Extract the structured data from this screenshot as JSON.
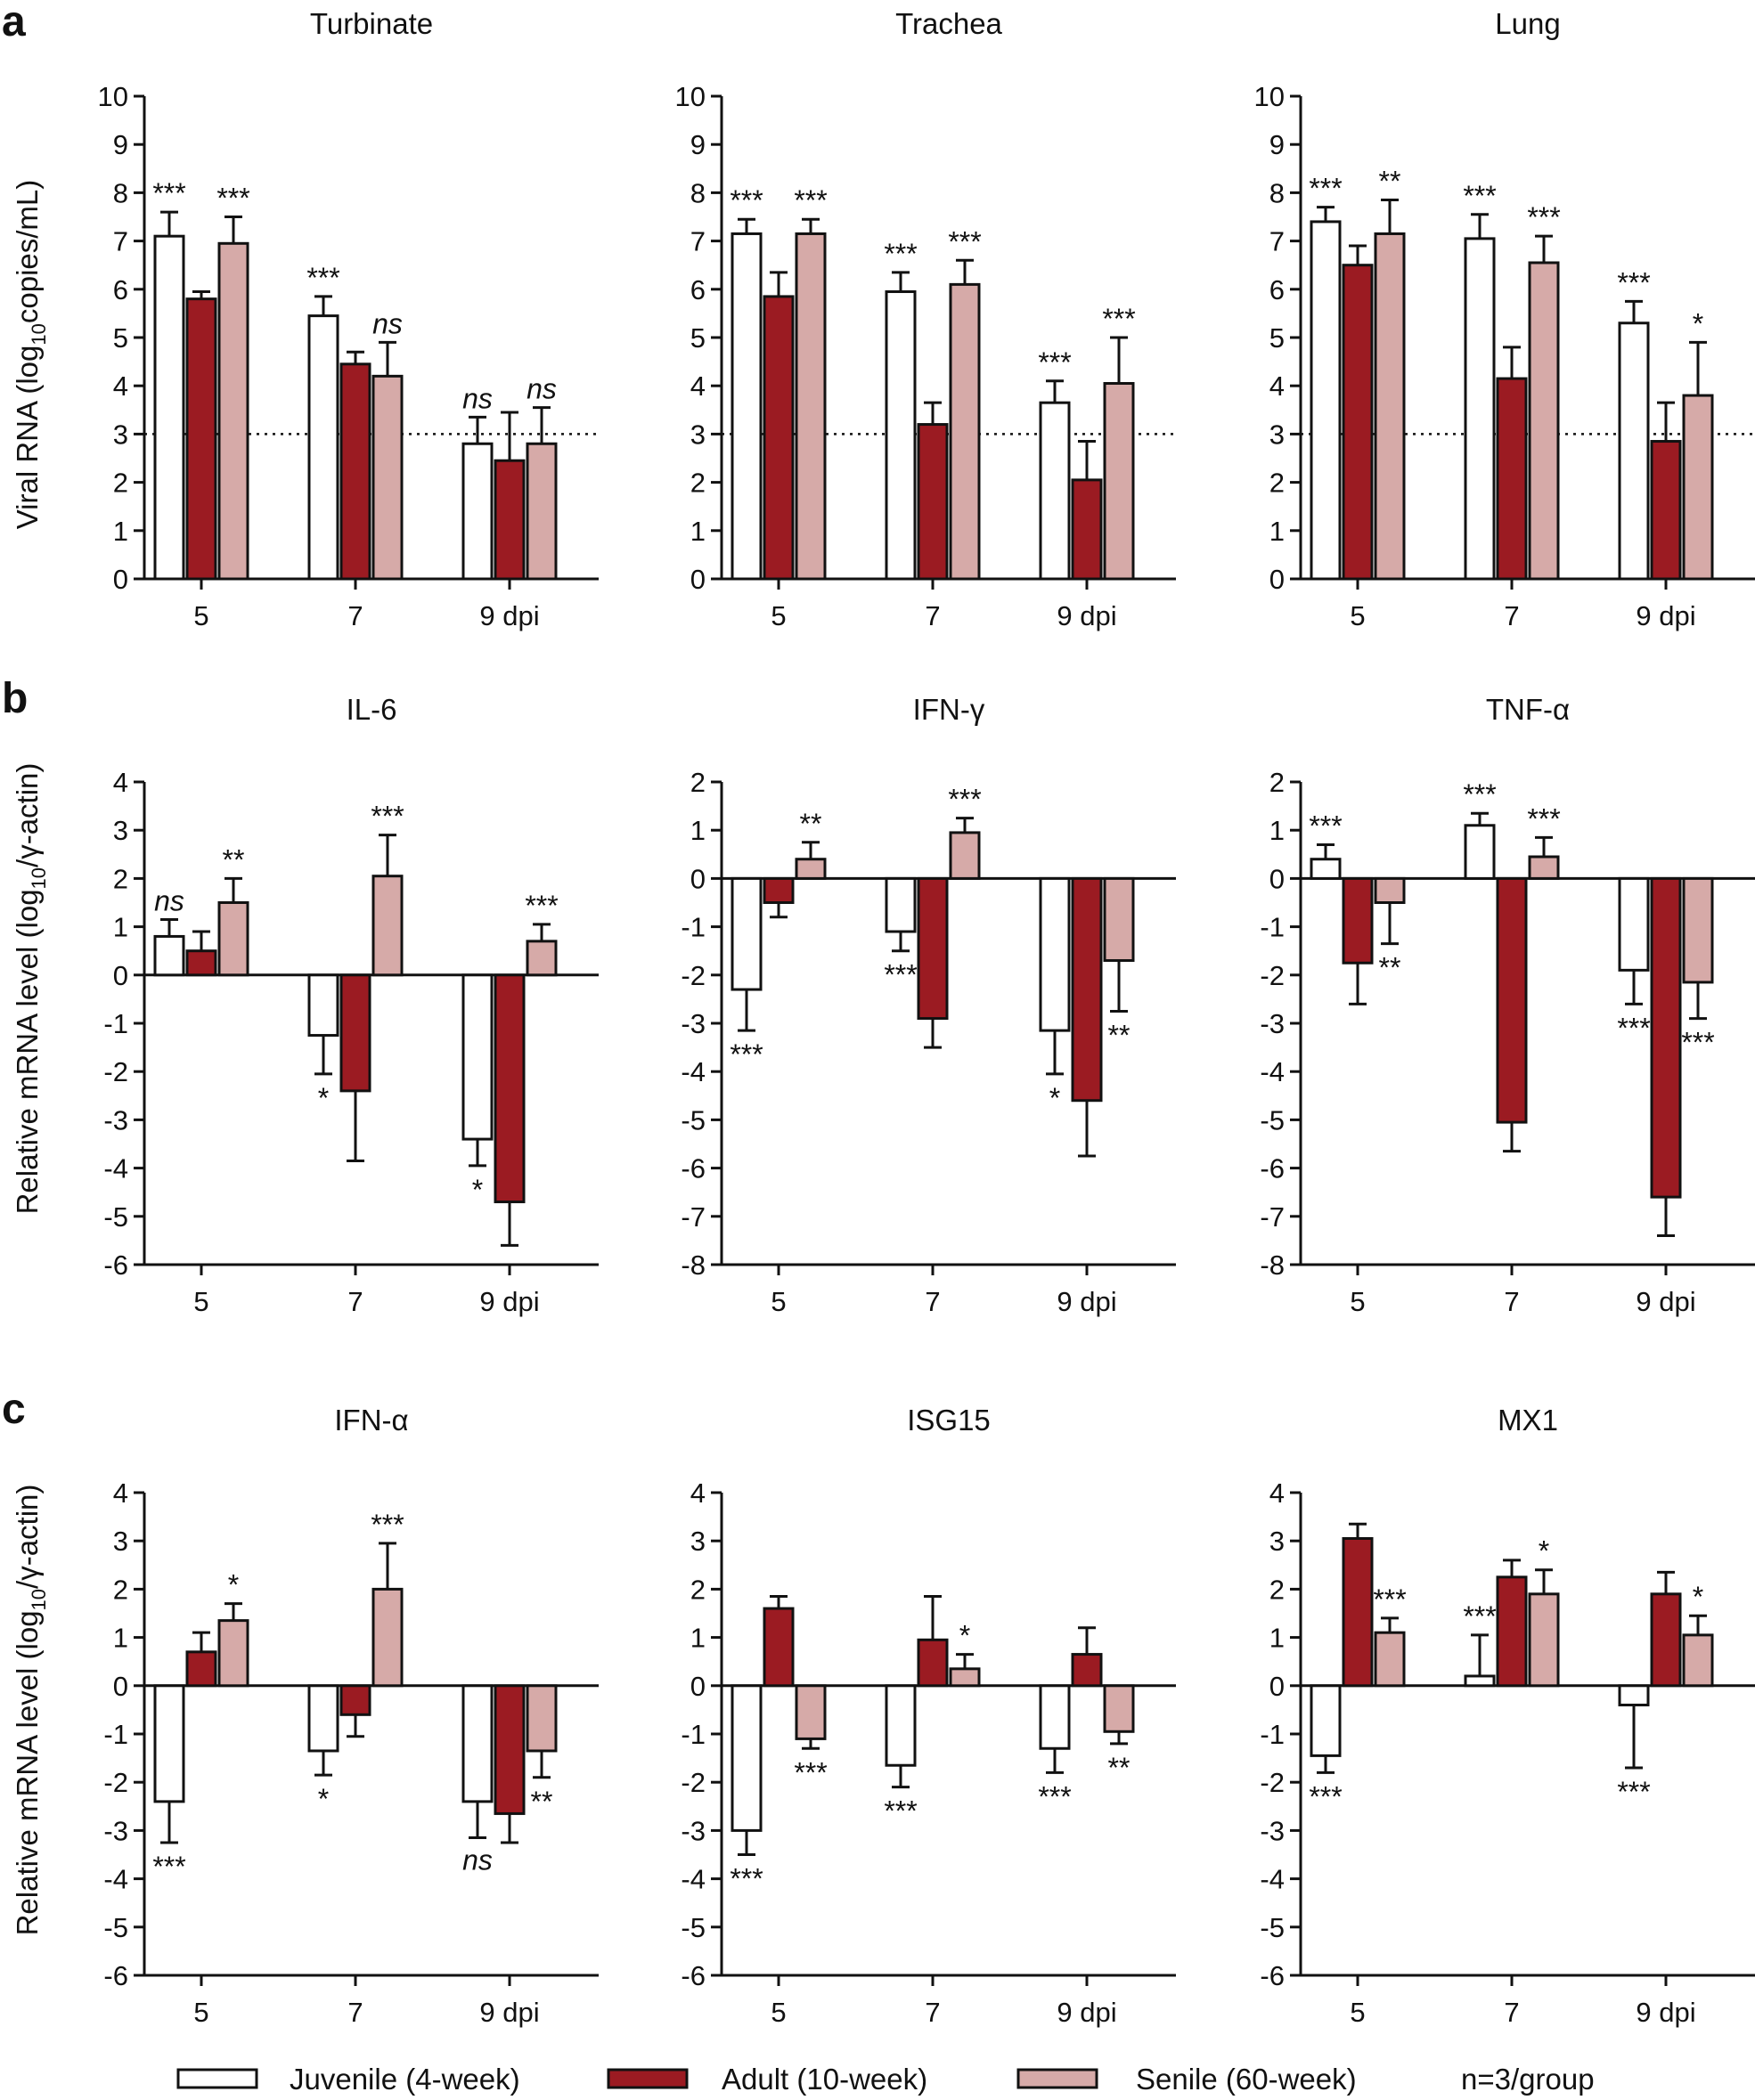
{
  "figure": {
    "panel_letters": [
      "a",
      "b",
      "c"
    ],
    "ylabels": {
      "viral_prefix": "Viral RNA (log",
      "viral_sub": "10",
      "viral_suffix": "copies/mL)",
      "mrna_prefix": "Relative mRNA level (log",
      "mrna_sub": "10",
      "mrna_suffix": "/γ-actin)"
    }
  },
  "legend": {
    "items": [
      {
        "label": "Juvenile (4-week)",
        "color": "#ffffff"
      },
      {
        "label": "Adult (10-week)",
        "color": "#9b1b22"
      },
      {
        "label": "Senile (60-week)",
        "color": "#d6aaa8"
      }
    ],
    "note": "n=3/group"
  },
  "chart_data": [
    {
      "type": "bar",
      "title": "Turbinate",
      "categories": [
        "5",
        "7",
        "9 dpi"
      ],
      "ylim": [
        0,
        10
      ],
      "yticks": [
        0,
        1,
        2,
        3,
        4,
        5,
        6,
        7,
        8,
        9,
        10
      ],
      "threshold": 3,
      "series": [
        {
          "name": "Juvenile (4-week)",
          "values": [
            7.1,
            5.45,
            2.8
          ],
          "err": [
            0.5,
            0.4,
            0.55
          ],
          "sig": [
            "***",
            "***",
            "ns"
          ]
        },
        {
          "name": "Adult (10-week)",
          "values": [
            5.8,
            4.45,
            2.45
          ],
          "err": [
            0.15,
            0.25,
            1.0
          ],
          "sig": [
            "",
            "",
            ""
          ]
        },
        {
          "name": "Senile (60-week)",
          "values": [
            6.95,
            4.2,
            2.8
          ],
          "err": [
            0.55,
            0.7,
            0.75
          ],
          "sig": [
            "***",
            "ns",
            "ns"
          ]
        }
      ]
    },
    {
      "type": "bar",
      "title": "Trachea",
      "categories": [
        "5",
        "7",
        "9 dpi"
      ],
      "ylim": [
        0,
        10
      ],
      "yticks": [
        0,
        1,
        2,
        3,
        4,
        5,
        6,
        7,
        8,
        9,
        10
      ],
      "threshold": 3,
      "series": [
        {
          "name": "Juvenile (4-week)",
          "values": [
            7.15,
            5.95,
            3.65
          ],
          "err": [
            0.3,
            0.4,
            0.45
          ],
          "sig": [
            "***",
            "***",
            "***"
          ]
        },
        {
          "name": "Adult (10-week)",
          "values": [
            5.85,
            3.2,
            2.05
          ],
          "err": [
            0.5,
            0.45,
            0.8
          ],
          "sig": [
            "",
            "",
            ""
          ]
        },
        {
          "name": "Senile (60-week)",
          "values": [
            7.15,
            6.1,
            4.05
          ],
          "err": [
            0.3,
            0.5,
            0.95
          ],
          "sig": [
            "***",
            "***",
            "***"
          ]
        }
      ]
    },
    {
      "type": "bar",
      "title": "Lung",
      "categories": [
        "5",
        "7",
        "9 dpi"
      ],
      "ylim": [
        0,
        10
      ],
      "yticks": [
        0,
        1,
        2,
        3,
        4,
        5,
        6,
        7,
        8,
        9,
        10
      ],
      "threshold": 3,
      "series": [
        {
          "name": "Juvenile (4-week)",
          "values": [
            7.4,
            7.05,
            5.3
          ],
          "err": [
            0.3,
            0.5,
            0.45
          ],
          "sig": [
            "***",
            "***",
            "***"
          ]
        },
        {
          "name": "Adult (10-week)",
          "values": [
            6.5,
            4.15,
            2.85
          ],
          "err": [
            0.4,
            0.65,
            0.8
          ],
          "sig": [
            "",
            "",
            ""
          ]
        },
        {
          "name": "Senile (60-week)",
          "values": [
            7.15,
            6.55,
            3.8
          ],
          "err": [
            0.7,
            0.55,
            1.1
          ],
          "sig": [
            "**",
            "***",
            "*"
          ]
        }
      ]
    },
    {
      "type": "bar",
      "title": "IL-6",
      "categories": [
        "5",
        "7",
        "9 dpi"
      ],
      "ylim": [
        -6,
        4
      ],
      "yticks": [
        -6,
        -5,
        -4,
        -3,
        -2,
        -1,
        0,
        1,
        2,
        3,
        4
      ],
      "series": [
        {
          "name": "Juvenile (4-week)",
          "values": [
            0.8,
            -1.25,
            -3.4
          ],
          "err": [
            0.35,
            0.8,
            0.55
          ],
          "sig": [
            "ns",
            "*",
            "*"
          ]
        },
        {
          "name": "Adult (10-week)",
          "values": [
            0.5,
            -2.4,
            -4.7
          ],
          "err": [
            0.4,
            1.45,
            0.9
          ],
          "sig": [
            "",
            "",
            ""
          ]
        },
        {
          "name": "Senile (60-week)",
          "values": [
            1.5,
            2.05,
            0.7
          ],
          "err": [
            0.5,
            0.85,
            0.35
          ],
          "sig": [
            "**",
            "***",
            "***"
          ]
        }
      ]
    },
    {
      "type": "bar",
      "title": "IFN-γ",
      "categories": [
        "5",
        "7",
        "9 dpi"
      ],
      "ylim": [
        -8,
        2
      ],
      "yticks": [
        -8,
        -7,
        -6,
        -5,
        -4,
        -3,
        -2,
        -1,
        0,
        1,
        2
      ],
      "series": [
        {
          "name": "Juvenile (4-week)",
          "values": [
            -2.3,
            -1.1,
            -3.15
          ],
          "err": [
            0.85,
            0.4,
            0.9
          ],
          "sig": [
            "***",
            "***",
            "*"
          ]
        },
        {
          "name": "Adult (10-week)",
          "values": [
            -0.5,
            -2.9,
            -4.6
          ],
          "err": [
            0.3,
            0.6,
            1.15
          ],
          "sig": [
            "",
            "",
            ""
          ]
        },
        {
          "name": "Senile (60-week)",
          "values": [
            0.4,
            0.95,
            -1.7
          ],
          "err": [
            0.35,
            0.3,
            1.05
          ],
          "sig": [
            "**",
            "***",
            "**"
          ]
        }
      ]
    },
    {
      "type": "bar",
      "title": "TNF-α",
      "categories": [
        "5",
        "7",
        "9 dpi"
      ],
      "ylim": [
        -8,
        2
      ],
      "yticks": [
        -8,
        -7,
        -6,
        -5,
        -4,
        -3,
        -2,
        -1,
        0,
        1,
        2
      ],
      "series": [
        {
          "name": "Juvenile (4-week)",
          "values": [
            0.4,
            1.1,
            -1.9
          ],
          "err": [
            0.3,
            0.25,
            0.7
          ],
          "sig": [
            "***",
            "***",
            "***"
          ]
        },
        {
          "name": "Adult (10-week)",
          "values": [
            -1.75,
            -5.05,
            -6.6
          ],
          "err": [
            0.85,
            0.6,
            0.8
          ],
          "sig": [
            "",
            "",
            ""
          ]
        },
        {
          "name": "Senile (60-week)",
          "values": [
            -0.5,
            0.45,
            -2.15
          ],
          "err": [
            0.85,
            0.4,
            0.75
          ],
          "sig": [
            "**",
            "***",
            "***"
          ]
        }
      ]
    },
    {
      "type": "bar",
      "title": "IFN-α",
      "categories": [
        "5",
        "7",
        "9 dpi"
      ],
      "ylim": [
        -6,
        4
      ],
      "yticks": [
        -6,
        -5,
        -4,
        -3,
        -2,
        -1,
        0,
        1,
        2,
        3,
        4
      ],
      "series": [
        {
          "name": "Juvenile (4-week)",
          "values": [
            -2.4,
            -1.35,
            -2.4
          ],
          "err": [
            0.85,
            0.5,
            0.75
          ],
          "sig": [
            "***",
            "*",
            "ns"
          ]
        },
        {
          "name": "Adult (10-week)",
          "values": [
            0.7,
            -0.6,
            -2.65
          ],
          "err": [
            0.4,
            0.45,
            0.6
          ],
          "sig": [
            "",
            "",
            ""
          ]
        },
        {
          "name": "Senile (60-week)",
          "values": [
            1.35,
            2.0,
            -1.35
          ],
          "err": [
            0.35,
            0.95,
            0.55
          ],
          "sig": [
            "*",
            "***",
            "**"
          ]
        }
      ]
    },
    {
      "type": "bar",
      "title": "ISG15",
      "categories": [
        "5",
        "7",
        "9 dpi"
      ],
      "ylim": [
        -6,
        4
      ],
      "yticks": [
        -6,
        -5,
        -4,
        -3,
        -2,
        -1,
        0,
        1,
        2,
        3,
        4
      ],
      "series": [
        {
          "name": "Juvenile (4-week)",
          "values": [
            -3.0,
            -1.65,
            -1.3
          ],
          "err": [
            0.5,
            0.45,
            0.5
          ],
          "sig": [
            "***",
            "***",
            "***"
          ]
        },
        {
          "name": "Adult (10-week)",
          "values": [
            1.6,
            0.95,
            0.65
          ],
          "err": [
            0.25,
            0.9,
            0.55
          ],
          "sig": [
            "",
            "",
            ""
          ]
        },
        {
          "name": "Senile (60-week)",
          "values": [
            -1.1,
            0.35,
            -0.95
          ],
          "err": [
            0.2,
            0.3,
            0.25
          ],
          "sig": [
            "***",
            "*",
            "**"
          ]
        }
      ]
    },
    {
      "type": "bar",
      "title": "MX1",
      "categories": [
        "5",
        "7",
        "9 dpi"
      ],
      "ylim": [
        -6,
        4
      ],
      "yticks": [
        -6,
        -5,
        -4,
        -3,
        -2,
        -1,
        0,
        1,
        2,
        3,
        4
      ],
      "series": [
        {
          "name": "Juvenile (4-week)",
          "values": [
            -1.45,
            0.2,
            -0.4
          ],
          "err": [
            0.35,
            0.85,
            1.3
          ],
          "sig": [
            "***",
            "***",
            "***"
          ]
        },
        {
          "name": "Adult (10-week)",
          "values": [
            3.05,
            2.25,
            1.9
          ],
          "err": [
            0.3,
            0.35,
            0.45
          ],
          "sig": [
            "",
            "",
            ""
          ]
        },
        {
          "name": "Senile (60-week)",
          "values": [
            1.1,
            1.9,
            1.05
          ],
          "err": [
            0.3,
            0.5,
            0.4
          ],
          "sig": [
            "***",
            "*",
            "*"
          ]
        }
      ]
    }
  ]
}
